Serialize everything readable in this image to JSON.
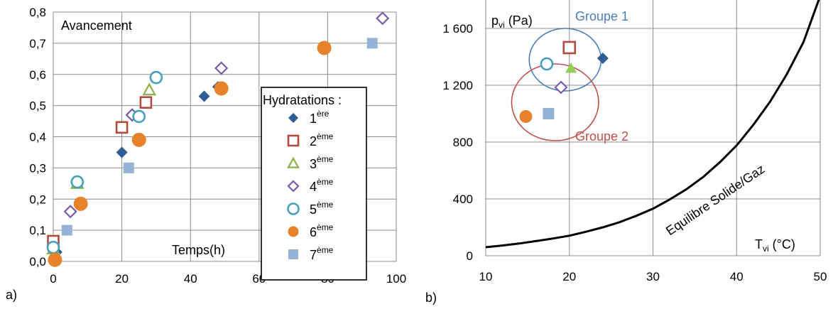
{
  "panels": {
    "left_tag": "a)",
    "right_tag": "b)"
  },
  "chart_data": [
    {
      "type": "scatter",
      "title": "Avancement",
      "xlabel": "Temps(h)",
      "ylabel": "",
      "xlim": [
        0,
        100
      ],
      "ylim": [
        0,
        0.8
      ],
      "xticks": [
        "0",
        "20",
        "40",
        "60",
        "80",
        "100"
      ],
      "yticks": [
        "0,0",
        "0,1",
        "0,2",
        "0,3",
        "0,4",
        "0,5",
        "0,6",
        "0,7",
        "0,8"
      ],
      "grid": true,
      "legend_title": "Hydratations :",
      "legend_position": "right",
      "series": [
        {
          "name": "1",
          "sup": "ère",
          "marker": "diamond",
          "color": "#2E5C94",
          "filled": true,
          "points": [
            [
              1,
              0.03
            ],
            [
              20,
              0.35
            ],
            [
              44,
              0.53
            ],
            [
              48,
              0.56
            ]
          ]
        },
        {
          "name": "2",
          "sup": "ème",
          "marker": "square",
          "color": "#B24A44",
          "filled": false,
          "points": [
            [
              0,
              0.065
            ],
            [
              20,
              0.43
            ],
            [
              27,
              0.51
            ]
          ]
        },
        {
          "name": "3",
          "sup": "ème",
          "marker": "triangle",
          "color": "#8DB04A",
          "filled": false,
          "points": [
            [
              0,
              0.04
            ],
            [
              7,
              0.25
            ],
            [
              28,
              0.55
            ]
          ]
        },
        {
          "name": "4",
          "sup": "ème",
          "marker": "diamond",
          "color": "#7A5CA6",
          "filled": false,
          "points": [
            [
              5,
              0.16
            ],
            [
              23,
              0.47
            ],
            [
              49,
              0.62
            ],
            [
              96,
              0.78
            ]
          ]
        },
        {
          "name": "5",
          "sup": "ème",
          "marker": "circle",
          "color": "#46A0B9",
          "filled": false,
          "points": [
            [
              0,
              0.045
            ],
            [
              7,
              0.255
            ],
            [
              25,
              0.465
            ],
            [
              30,
              0.59
            ]
          ]
        },
        {
          "name": "6",
          "sup": "ème",
          "marker": "circle",
          "color": "#E6832A",
          "filled": true,
          "points": [
            [
              0.5,
              0.005
            ],
            [
              8,
              0.185
            ],
            [
              25,
              0.39
            ],
            [
              49,
              0.555
            ],
            [
              79,
              0.685
            ]
          ]
        },
        {
          "name": "7",
          "sup": "ème",
          "marker": "square",
          "color": "#95B3D7",
          "filled": true,
          "points": [
            [
              4,
              0.1
            ],
            [
              22,
              0.3
            ],
            [
              93,
              0.7
            ]
          ]
        }
      ]
    },
    {
      "type": "scatter",
      "title": "",
      "ylabel": "p",
      "ylabel_sub": "vi",
      "ylabel_unit": " (Pa)",
      "xlabel": "T",
      "xlabel_sub": "vi",
      "xlabel_unit": " (°C)",
      "xlim": [
        10,
        50
      ],
      "ylim": [
        0,
        1800
      ],
      "xticks": [
        "10",
        "20",
        "30",
        "40",
        "50"
      ],
      "yticks": [
        "0",
        "400",
        "800",
        "1 200",
        "1 600"
      ],
      "ytick_values": [
        0,
        400,
        800,
        1200,
        1600
      ],
      "grid": true,
      "points": [
        {
          "x": 24,
          "y": 1390,
          "marker": "diamond",
          "color": "#2E5C94",
          "filled": true
        },
        {
          "x": 20,
          "y": 1465,
          "marker": "square",
          "color": "#B24A44",
          "filled": false
        },
        {
          "x": 20.2,
          "y": 1320,
          "marker": "triangle",
          "color": "#92D050",
          "filled": true
        },
        {
          "x": 19,
          "y": 1185,
          "marker": "diamond",
          "color": "#7A5CA6",
          "filled": false
        },
        {
          "x": 17.3,
          "y": 1350,
          "marker": "circle",
          "color": "#46A0B9",
          "filled": false
        },
        {
          "x": 14.8,
          "y": 980,
          "marker": "circle",
          "color": "#E6832A",
          "filled": true
        },
        {
          "x": 17.5,
          "y": 1000,
          "marker": "square",
          "color": "#95B3D7",
          "filled": true
        }
      ],
      "groups": [
        {
          "label": "Groupe 1",
          "color": "#4A7EBB",
          "cx": 19.5,
          "cy": 1380,
          "rx": 4.3,
          "ry": 220
        },
        {
          "label": "Groupe 2",
          "color": "#C0504D",
          "cx": 18.3,
          "cy": 1080,
          "rx": 5.2,
          "ry": 270
        }
      ],
      "curve": {
        "label": "Equilibre Solide/Gaz",
        "color": "#000000",
        "points": [
          [
            10,
            60
          ],
          [
            12,
            72
          ],
          [
            14,
            86
          ],
          [
            16,
            103
          ],
          [
            18,
            121
          ],
          [
            20,
            141
          ],
          [
            22,
            169
          ],
          [
            24,
            200
          ],
          [
            26,
            236
          ],
          [
            28,
            281
          ],
          [
            30,
            331
          ],
          [
            32,
            396
          ],
          [
            34,
            468
          ],
          [
            36,
            554
          ],
          [
            38,
            658
          ],
          [
            40,
            776
          ],
          [
            42,
            921
          ],
          [
            44,
            1084
          ],
          [
            46,
            1277
          ],
          [
            48,
            1504
          ],
          [
            50,
            1829
          ]
        ]
      }
    }
  ]
}
